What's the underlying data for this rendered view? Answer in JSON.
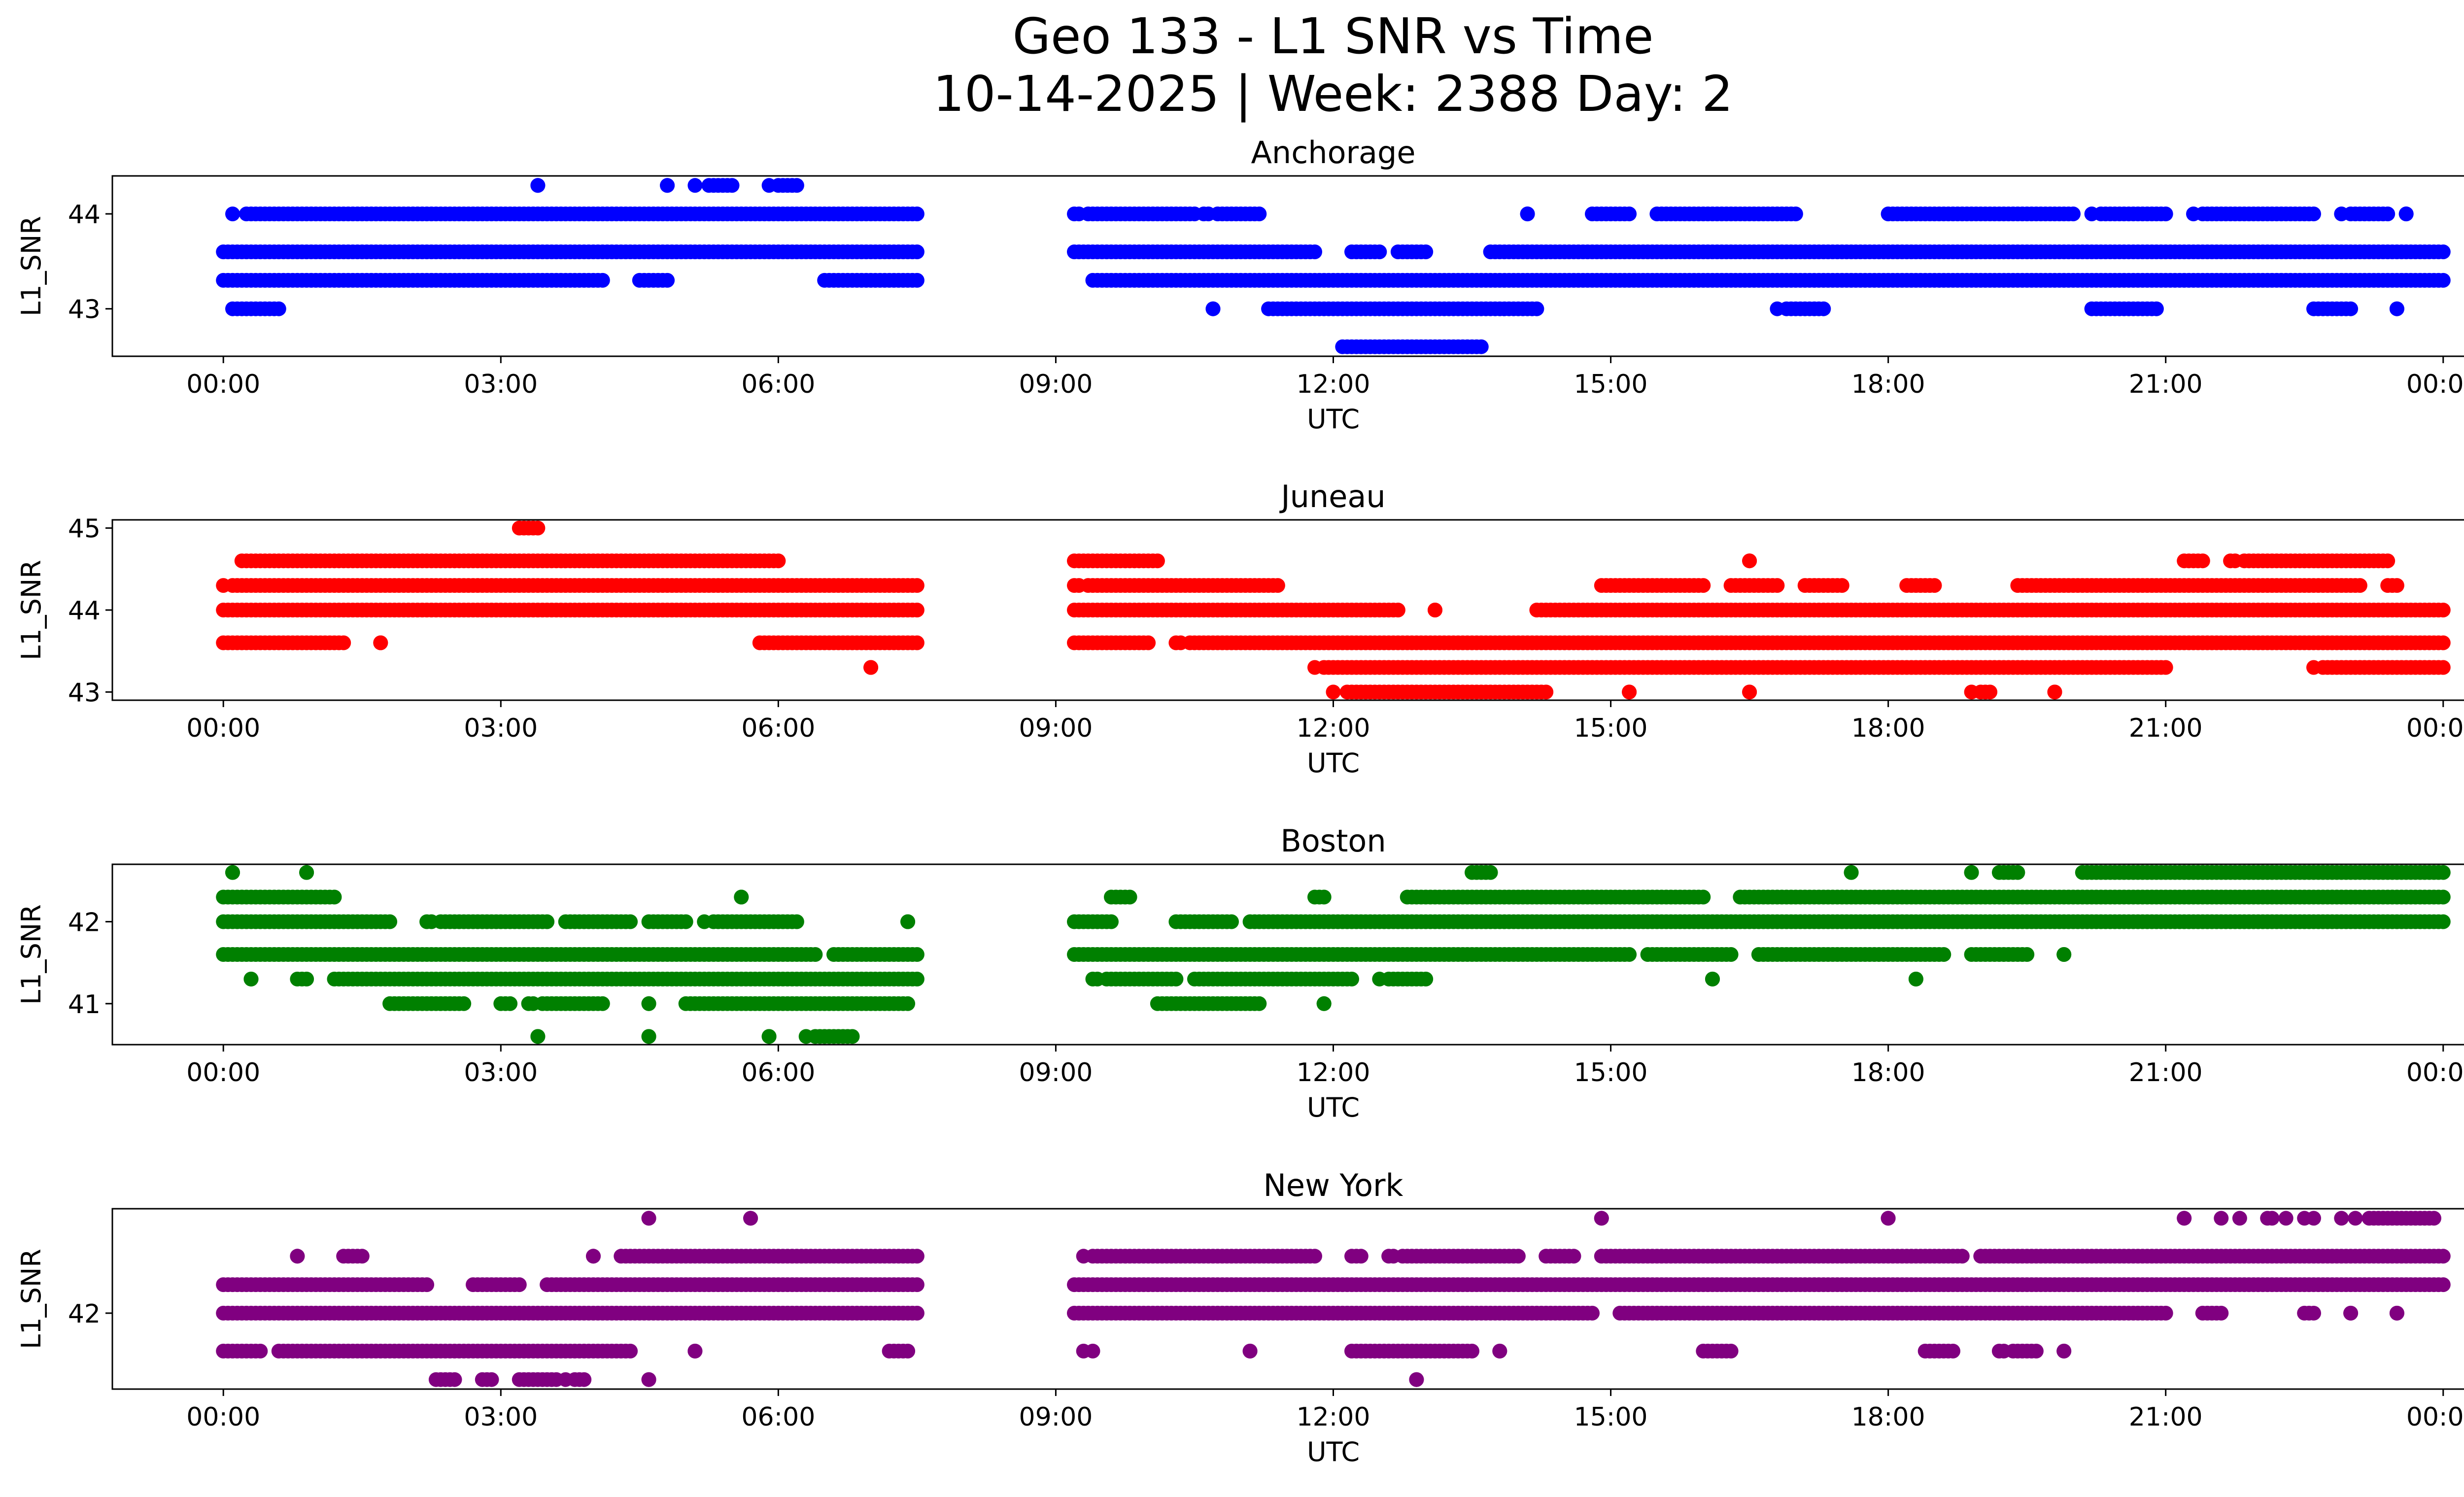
{
  "chart_data": {
    "type": "scatter",
    "title_line1": "Geo 133 - L1 SNR vs Time",
    "title_line2": "10-14-2025 | Week: 2388 Day: 2",
    "xlabel": "UTC",
    "ylabel": "L1_SNR",
    "x_unit": "hours UTC",
    "xlim": [
      -1.2,
      25.2
    ],
    "xticks": [
      0,
      3,
      6,
      9,
      12,
      15,
      18,
      21,
      24
    ],
    "xtick_labels": [
      "00:00",
      "03:00",
      "06:00",
      "09:00",
      "12:00",
      "15:00",
      "18:00",
      "21:00",
      "00:00"
    ],
    "data_gap_hours": [
      7.5,
      9.2
    ],
    "panels": [
      {
        "station": "Anchorage",
        "color": "#0000ff",
        "ylim": [
          42.5,
          44.4
        ],
        "yticks": [
          43,
          44
        ],
        "bands": [
          {
            "y": 44.3,
            "ranges": [
              [
                3.4,
                3.4
              ],
              [
                4.8,
                4.8
              ],
              [
                5.1,
                5.5
              ],
              [
                5.9,
                6.2
              ]
            ],
            "density": 0.7
          },
          {
            "y": 44.0,
            "ranges": [
              [
                0.1,
                7.5
              ],
              [
                9.2,
                10.5
              ],
              [
                10.6,
                11.2
              ],
              [
                14.1,
                14.1
              ],
              [
                14.8,
                15.2
              ],
              [
                15.5,
                17.0
              ],
              [
                18.0,
                20.0
              ],
              [
                20.2,
                21.0
              ],
              [
                21.3,
                22.6
              ],
              [
                22.9,
                23.4
              ],
              [
                23.6,
                23.6
              ]
            ],
            "density": 0.75
          },
          {
            "y": 43.6,
            "ranges": [
              [
                0.0,
                7.5
              ],
              [
                9.2,
                11.8
              ],
              [
                12.2,
                12.5
              ],
              [
                12.7,
                13.0
              ],
              [
                13.7,
                24.0
              ]
            ],
            "density": 1.0
          },
          {
            "y": 43.3,
            "ranges": [
              [
                0.0,
                4.1
              ],
              [
                4.5,
                4.8
              ],
              [
                6.5,
                7.5
              ],
              [
                9.4,
                24.0
              ]
            ],
            "density": 0.95
          },
          {
            "y": 43.0,
            "ranges": [
              [
                0.1,
                0.6
              ],
              [
                10.7,
                10.7
              ],
              [
                11.3,
                14.2
              ],
              [
                16.8,
                17.3
              ],
              [
                20.2,
                20.9
              ],
              [
                22.6,
                23.0
              ],
              [
                23.5,
                23.5
              ]
            ],
            "density": 0.7
          },
          {
            "y": 42.6,
            "ranges": [
              [
                12.1,
                13.6
              ]
            ],
            "density": 0.6
          }
        ]
      },
      {
        "station": "Juneau",
        "color": "#ff0000",
        "ylim": [
          42.9,
          45.1
        ],
        "yticks": [
          43,
          44,
          45
        ],
        "bands": [
          {
            "y": 45.0,
            "ranges": [
              [
                3.2,
                3.4
              ]
            ],
            "density": 1.0
          },
          {
            "y": 44.6,
            "ranges": [
              [
                0.2,
                6.0
              ],
              [
                9.2,
                10.1
              ],
              [
                16.5,
                16.5
              ],
              [
                21.2,
                21.4
              ],
              [
                21.7,
                23.4
              ]
            ],
            "density": 0.85
          },
          {
            "y": 44.3,
            "ranges": [
              [
                0.0,
                7.5
              ],
              [
                9.2,
                11.4
              ],
              [
                14.9,
                16.0
              ],
              [
                16.3,
                16.8
              ],
              [
                17.1,
                17.5
              ],
              [
                18.2,
                18.5
              ],
              [
                19.4,
                23.1
              ],
              [
                23.4,
                23.5
              ]
            ],
            "density": 0.9
          },
          {
            "y": 44.0,
            "ranges": [
              [
                0.0,
                7.5
              ],
              [
                9.2,
                12.7
              ],
              [
                13.1,
                13.1
              ],
              [
                14.2,
                24.0
              ]
            ],
            "density": 1.0
          },
          {
            "y": 43.6,
            "ranges": [
              [
                0.0,
                1.3
              ],
              [
                1.7,
                1.7
              ],
              [
                5.8,
                7.5
              ],
              [
                9.2,
                10.0
              ],
              [
                10.3,
                24.0
              ]
            ],
            "density": 0.85
          },
          {
            "y": 43.3,
            "ranges": [
              [
                7.0,
                7.0
              ],
              [
                11.8,
                21.0
              ],
              [
                22.6,
                24.0
              ]
            ],
            "density": 0.8
          },
          {
            "y": 43.0,
            "ranges": [
              [
                12.0,
                14.3
              ],
              [
                15.2,
                15.2
              ],
              [
                16.5,
                16.5
              ],
              [
                18.9,
                19.1
              ],
              [
                19.8,
                19.8
              ]
            ],
            "density": 0.6
          }
        ]
      },
      {
        "station": "Boston",
        "color": "#008000",
        "ylim": [
          40.5,
          42.7
        ],
        "yticks": [
          41,
          42
        ],
        "bands": [
          {
            "y": 42.6,
            "ranges": [
              [
                0.1,
                0.1
              ],
              [
                0.9,
                0.9
              ],
              [
                13.5,
                13.7
              ],
              [
                17.6,
                17.6
              ],
              [
                18.9,
                18.9
              ],
              [
                19.2,
                19.4
              ],
              [
                20.1,
                24.0
              ]
            ],
            "density": 0.85
          },
          {
            "y": 42.3,
            "ranges": [
              [
                0.0,
                1.2
              ],
              [
                5.6,
                5.6
              ],
              [
                9.6,
                9.8
              ],
              [
                11.8,
                11.9
              ],
              [
                12.8,
                16.0
              ],
              [
                16.4,
                24.0
              ]
            ],
            "density": 0.95
          },
          {
            "y": 42.0,
            "ranges": [
              [
                0.0,
                1.8
              ],
              [
                2.2,
                3.5
              ],
              [
                3.7,
                4.4
              ],
              [
                4.6,
                5.0
              ],
              [
                5.2,
                6.2
              ],
              [
                7.4,
                7.4
              ],
              [
                9.2,
                9.6
              ],
              [
                10.3,
                10.9
              ],
              [
                11.1,
                24.0
              ]
            ],
            "density": 0.9
          },
          {
            "y": 41.6,
            "ranges": [
              [
                0.0,
                6.4
              ],
              [
                6.6,
                7.5
              ],
              [
                9.2,
                15.2
              ],
              [
                15.4,
                16.3
              ],
              [
                16.6,
                18.6
              ],
              [
                18.9,
                19.5
              ],
              [
                19.9,
                19.9
              ]
            ],
            "density": 0.95
          },
          {
            "y": 41.3,
            "ranges": [
              [
                0.3,
                0.3
              ],
              [
                0.8,
                0.9
              ],
              [
                1.2,
                7.5
              ],
              [
                9.4,
                10.3
              ],
              [
                10.5,
                12.2
              ],
              [
                12.5,
                13.0
              ],
              [
                16.1,
                16.1
              ],
              [
                18.3,
                18.3
              ]
            ],
            "density": 0.85
          },
          {
            "y": 41.0,
            "ranges": [
              [
                1.8,
                2.6
              ],
              [
                3.0,
                3.1
              ],
              [
                3.3,
                4.1
              ],
              [
                4.6,
                4.6
              ],
              [
                5.0,
                7.4
              ],
              [
                10.1,
                11.2
              ],
              [
                11.9,
                11.9
              ]
            ],
            "density": 0.75
          },
          {
            "y": 40.6,
            "ranges": [
              [
                3.4,
                3.4
              ],
              [
                4.6,
                4.6
              ],
              [
                5.9,
                5.9
              ],
              [
                6.3,
                6.8
              ]
            ],
            "density": 0.7
          }
        ]
      },
      {
        "station": "New York",
        "color": "#800080",
        "ylim": [
          41.2,
          43.1
        ],
        "yticks": [
          42
        ],
        "bands": [
          {
            "y": 43.0,
            "ranges": [
              [
                4.6,
                4.6
              ],
              [
                5.7,
                5.7
              ],
              [
                14.9,
                14.9
              ],
              [
                18.0,
                18.0
              ],
              [
                21.2,
                21.2
              ],
              [
                21.6,
                21.8
              ],
              [
                22.1,
                22.6
              ],
              [
                22.9,
                23.9
              ]
            ],
            "density": 0.6
          },
          {
            "y": 42.6,
            "ranges": [
              [
                0.8,
                0.8
              ],
              [
                1.3,
                1.5
              ],
              [
                4.0,
                4.0
              ],
              [
                4.3,
                7.5
              ],
              [
                9.3,
                11.8
              ],
              [
                12.2,
                12.3
              ],
              [
                12.6,
                14.0
              ],
              [
                14.3,
                14.6
              ],
              [
                14.9,
                18.8
              ],
              [
                19.0,
                24.0
              ]
            ],
            "density": 0.9
          },
          {
            "y": 42.3,
            "ranges": [
              [
                0.0,
                2.2
              ],
              [
                2.7,
                3.2
              ],
              [
                3.5,
                7.5
              ],
              [
                9.2,
                24.0
              ]
            ],
            "density": 1.0
          },
          {
            "y": 42.0,
            "ranges": [
              [
                0.0,
                7.5
              ],
              [
                9.2,
                14.8
              ],
              [
                15.1,
                21.0
              ],
              [
                21.4,
                21.6
              ],
              [
                22.5,
                22.6
              ],
              [
                23.0,
                23.0
              ],
              [
                23.5,
                23.5
              ]
            ],
            "density": 1.0
          },
          {
            "y": 41.6,
            "ranges": [
              [
                0.0,
                0.4
              ],
              [
                0.6,
                4.4
              ],
              [
                5.1,
                5.1
              ],
              [
                7.2,
                7.4
              ],
              [
                9.3,
                9.4
              ],
              [
                11.1,
                11.1
              ],
              [
                12.2,
                13.5
              ],
              [
                13.8,
                13.8
              ],
              [
                16.0,
                16.3
              ],
              [
                18.4,
                18.7
              ],
              [
                19.2,
                19.6
              ],
              [
                19.9,
                19.9
              ]
            ],
            "density": 0.85
          },
          {
            "y": 41.3,
            "ranges": [
              [
                2.3,
                2.5
              ],
              [
                2.8,
                2.9
              ],
              [
                3.2,
                3.6
              ],
              [
                3.7,
                3.9
              ],
              [
                4.6,
                4.6
              ],
              [
                12.9,
                12.9
              ]
            ],
            "density": 0.8
          }
        ]
      }
    ]
  }
}
